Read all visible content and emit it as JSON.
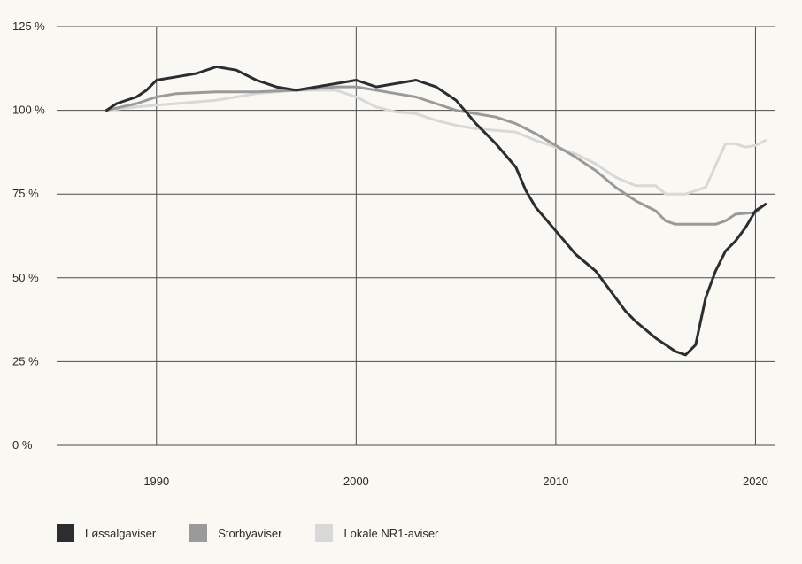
{
  "chart_data": {
    "type": "line",
    "title": "",
    "xlabel": "",
    "ylabel": "",
    "xlim": [
      1985,
      2021
    ],
    "ylim": [
      0,
      125
    ],
    "y_ticks": [
      0,
      25,
      50,
      75,
      100,
      125
    ],
    "y_tick_labels": [
      "0 %",
      "25 %",
      "50 %",
      "75 %",
      "100 %",
      "125 %"
    ],
    "x_ticks": [
      1990,
      2000,
      2010,
      2020
    ],
    "x_tick_labels": [
      "1990",
      "2000",
      "2010",
      "2020"
    ],
    "grid": true,
    "legend_position": "bottom-left",
    "series": [
      {
        "name": "Lokale NR1-aviser",
        "color": "#d8d8d8",
        "points": [
          [
            1987.5,
            100
          ],
          [
            1989,
            101
          ],
          [
            1991,
            102
          ],
          [
            1993,
            103
          ],
          [
            1995,
            105
          ],
          [
            1997,
            106
          ],
          [
            1999,
            106
          ],
          [
            2000,
            104
          ],
          [
            2001,
            101
          ],
          [
            2002,
            99.5
          ],
          [
            2003,
            99
          ],
          [
            2004,
            97
          ],
          [
            2005,
            95.5
          ],
          [
            2006,
            94.5
          ],
          [
            2007,
            94
          ],
          [
            2008,
            93.5
          ],
          [
            2009,
            91
          ],
          [
            2010,
            89
          ],
          [
            2011,
            87
          ],
          [
            2012,
            84
          ],
          [
            2013,
            80
          ],
          [
            2014,
            77.5
          ],
          [
            2015,
            77.5
          ],
          [
            2015.5,
            75
          ],
          [
            2016.5,
            75
          ],
          [
            2017.5,
            77
          ],
          [
            2018.5,
            90
          ],
          [
            2019,
            90
          ],
          [
            2019.5,
            89
          ],
          [
            2020,
            89.5
          ],
          [
            2020.5,
            91
          ]
        ]
      },
      {
        "name": "Storbyaviser",
        "color": "#9a9a9a",
        "points": [
          [
            1987.5,
            100
          ],
          [
            1989,
            102
          ],
          [
            1990,
            104
          ],
          [
            1991,
            105
          ],
          [
            1993,
            105.5
          ],
          [
            1995,
            105.5
          ],
          [
            1997,
            106
          ],
          [
            1999,
            107
          ],
          [
            2000,
            107
          ],
          [
            2001,
            106
          ],
          [
            2002,
            105
          ],
          [
            2003,
            104
          ],
          [
            2004,
            102
          ],
          [
            2005,
            100
          ],
          [
            2006,
            99
          ],
          [
            2007,
            98
          ],
          [
            2008,
            96
          ],
          [
            2009,
            93
          ],
          [
            2010,
            89.5
          ],
          [
            2011,
            86
          ],
          [
            2012,
            82
          ],
          [
            2013,
            77
          ],
          [
            2014,
            73
          ],
          [
            2015,
            70
          ],
          [
            2015.5,
            67
          ],
          [
            2016,
            66
          ],
          [
            2017,
            66
          ],
          [
            2018,
            66
          ],
          [
            2018.5,
            67
          ],
          [
            2019,
            69
          ],
          [
            2020,
            69.5
          ],
          [
            2020.5,
            72
          ]
        ]
      },
      {
        "name": "Løssalgaviser",
        "color": "#2b2d30",
        "points": [
          [
            1987.5,
            100
          ],
          [
            1988,
            102
          ],
          [
            1989,
            104
          ],
          [
            1989.5,
            106
          ],
          [
            1990,
            109
          ],
          [
            1991,
            110
          ],
          [
            1992,
            111
          ],
          [
            1993,
            113
          ],
          [
            1994,
            112
          ],
          [
            1995,
            109
          ],
          [
            1996,
            107
          ],
          [
            1997,
            106
          ],
          [
            1998,
            107
          ],
          [
            1999,
            108
          ],
          [
            2000,
            109
          ],
          [
            2001,
            107
          ],
          [
            2002,
            108
          ],
          [
            2003,
            109
          ],
          [
            2004,
            107
          ],
          [
            2005,
            103
          ],
          [
            2006,
            96
          ],
          [
            2007,
            90
          ],
          [
            2008,
            83
          ],
          [
            2008.5,
            76
          ],
          [
            2009,
            71
          ],
          [
            2010,
            64
          ],
          [
            2011,
            57
          ],
          [
            2012,
            52
          ],
          [
            2012.5,
            48
          ],
          [
            2013,
            44
          ],
          [
            2013.5,
            40
          ],
          [
            2014,
            37
          ],
          [
            2015,
            32
          ],
          [
            2016,
            28
          ],
          [
            2016.5,
            27
          ],
          [
            2017,
            30
          ],
          [
            2017.5,
            44
          ],
          [
            2018,
            52
          ],
          [
            2018.5,
            58
          ],
          [
            2019,
            61
          ],
          [
            2019.5,
            65
          ],
          [
            2020,
            70
          ],
          [
            2020.5,
            72
          ]
        ]
      }
    ]
  },
  "legend": {
    "items": [
      {
        "label": "Løssalgaviser",
        "color": "#2b2d30"
      },
      {
        "label": "Storbyaviser",
        "color": "#9a9a9a"
      },
      {
        "label": "Lokale NR1-aviser",
        "color": "#d8d8d8"
      }
    ]
  }
}
